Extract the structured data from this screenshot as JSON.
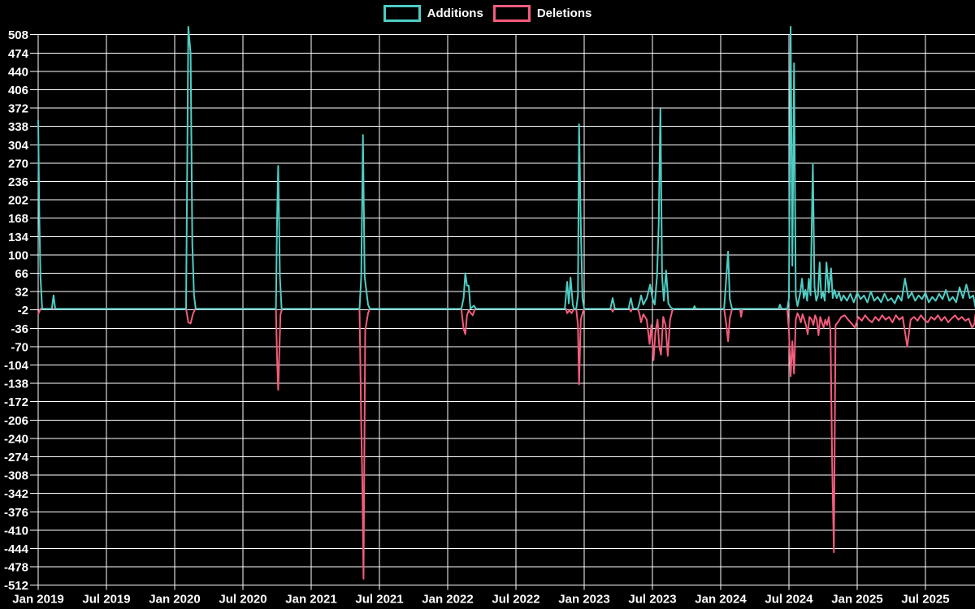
{
  "chart_data": {
    "type": "line",
    "title": "",
    "legend_position": "top-center",
    "grid": true,
    "colors": {
      "background": "#000000",
      "grid": "#FFFFFF",
      "text": "#FFFFFF",
      "additions": "#4ECDC4",
      "deletions": "#F45C7C"
    },
    "legend": [
      {
        "label": "Additions",
        "color": "#4ECDC4"
      },
      {
        "label": "Deletions",
        "color": "#F45C7C"
      }
    ],
    "y_axis": {
      "min": -512,
      "max": 508,
      "step": 34,
      "ticks": [
        508,
        474,
        440,
        406,
        372,
        338,
        304,
        270,
        236,
        202,
        168,
        134,
        100,
        66,
        32,
        -2,
        -36,
        -70,
        -104,
        -138,
        -172,
        -206,
        -240,
        -274,
        -308,
        -342,
        -376,
        -410,
        -444,
        -478,
        -512
      ]
    },
    "x_axis": {
      "tick_labels": [
        "Jan 2019",
        "Jul 2019",
        "Jan 2020",
        "Jul 2020",
        "Jan 2021",
        "Jul 2021",
        "Jan 2022",
        "Jul 2022",
        "Jan 2023",
        "Jul 2023",
        "Jan 2024",
        "Jul 2024",
        "Jan 2025",
        "Jul 2025"
      ],
      "tick_interval_months": 6,
      "end_month_offset": 82.4
    },
    "series": [
      {
        "name": "Additions",
        "color": "#4ECDC4",
        "points": [
          [
            0,
            350
          ],
          [
            0.1,
            170
          ],
          [
            0.2,
            60
          ],
          [
            0.35,
            0
          ],
          [
            1.2,
            0
          ],
          [
            1.35,
            25
          ],
          [
            1.5,
            0
          ],
          [
            13.0,
            0
          ],
          [
            13.2,
            530
          ],
          [
            13.4,
            473
          ],
          [
            13.55,
            120
          ],
          [
            13.7,
            25
          ],
          [
            13.85,
            0
          ],
          [
            20.9,
            0
          ],
          [
            21.0,
            163
          ],
          [
            21.1,
            265
          ],
          [
            21.25,
            60
          ],
          [
            21.4,
            0
          ],
          [
            28.25,
            0
          ],
          [
            28.4,
            60
          ],
          [
            28.55,
            322
          ],
          [
            28.7,
            60
          ],
          [
            28.8,
            42
          ],
          [
            29.0,
            8
          ],
          [
            29.15,
            0
          ],
          [
            37.2,
            0
          ],
          [
            37.4,
            20
          ],
          [
            37.55,
            66
          ],
          [
            37.7,
            43
          ],
          [
            37.85,
            43
          ],
          [
            38.0,
            0
          ],
          [
            38.3,
            6
          ],
          [
            38.5,
            0
          ],
          [
            46.3,
            0
          ],
          [
            46.5,
            50
          ],
          [
            46.65,
            10
          ],
          [
            46.8,
            58
          ],
          [
            47.0,
            8
          ],
          [
            47.1,
            0
          ],
          [
            47.3,
            0
          ],
          [
            47.45,
            25
          ],
          [
            47.55,
            342
          ],
          [
            47.7,
            155
          ],
          [
            47.85,
            20
          ],
          [
            48.0,
            0
          ],
          [
            50.3,
            0
          ],
          [
            50.5,
            20
          ],
          [
            50.7,
            0
          ],
          [
            51.9,
            0
          ],
          [
            52.1,
            20
          ],
          [
            52.3,
            0
          ],
          [
            52.7,
            0
          ],
          [
            52.85,
            10
          ],
          [
            53.0,
            25
          ],
          [
            53.2,
            8
          ],
          [
            53.5,
            20
          ],
          [
            53.8,
            45
          ],
          [
            54.0,
            20
          ],
          [
            54.2,
            8
          ],
          [
            54.4,
            60
          ],
          [
            54.55,
            155
          ],
          [
            54.7,
            370
          ],
          [
            54.85,
            60
          ],
          [
            55.0,
            15
          ],
          [
            55.2,
            71
          ],
          [
            55.4,
            10
          ],
          [
            55.6,
            3
          ],
          [
            55.8,
            0
          ],
          [
            57.6,
            0
          ],
          [
            57.7,
            5
          ],
          [
            57.8,
            0
          ],
          [
            60.3,
            0
          ],
          [
            60.5,
            60
          ],
          [
            60.65,
            106
          ],
          [
            60.8,
            18
          ],
          [
            61.0,
            0
          ],
          [
            65.1,
            0
          ],
          [
            65.2,
            8
          ],
          [
            65.35,
            0
          ],
          [
            65.85,
            0
          ],
          [
            66.0,
            20
          ],
          [
            66.15,
            540
          ],
          [
            66.3,
            80
          ],
          [
            66.45,
            455
          ],
          [
            66.6,
            25
          ],
          [
            66.75,
            5
          ],
          [
            66.85,
            15
          ],
          [
            67.0,
            30
          ],
          [
            67.15,
            56
          ],
          [
            67.3,
            20
          ],
          [
            67.45,
            35
          ],
          [
            67.6,
            15
          ],
          [
            67.75,
            56
          ],
          [
            67.9,
            25
          ],
          [
            68.1,
            269
          ],
          [
            68.25,
            40
          ],
          [
            68.4,
            15
          ],
          [
            68.55,
            25
          ],
          [
            68.7,
            86
          ],
          [
            68.85,
            20
          ],
          [
            69.0,
            30
          ],
          [
            69.15,
            15
          ],
          [
            69.3,
            86
          ],
          [
            69.5,
            30
          ],
          [
            69.7,
            75
          ],
          [
            69.85,
            20
          ],
          [
            70.0,
            35
          ],
          [
            70.2,
            20
          ],
          [
            70.4,
            30
          ],
          [
            70.6,
            15
          ],
          [
            70.8,
            25
          ],
          [
            71.1,
            15
          ],
          [
            71.4,
            28
          ],
          [
            71.7,
            12
          ],
          [
            72.0,
            30
          ],
          [
            72.3,
            18
          ],
          [
            72.6,
            25
          ],
          [
            72.9,
            12
          ],
          [
            73.2,
            32
          ],
          [
            73.5,
            15
          ],
          [
            73.8,
            22
          ],
          [
            74.1,
            12
          ],
          [
            74.4,
            28
          ],
          [
            74.7,
            15
          ],
          [
            75.0,
            20
          ],
          [
            75.3,
            10
          ],
          [
            75.6,
            25
          ],
          [
            75.9,
            15
          ],
          [
            76.2,
            56
          ],
          [
            76.5,
            20
          ],
          [
            76.8,
            30
          ],
          [
            77.1,
            15
          ],
          [
            77.4,
            25
          ],
          [
            77.7,
            18
          ],
          [
            78.0,
            30
          ],
          [
            78.3,
            12
          ],
          [
            78.6,
            22
          ],
          [
            78.9,
            15
          ],
          [
            79.2,
            28
          ],
          [
            79.5,
            18
          ],
          [
            79.8,
            35
          ],
          [
            80.1,
            15
          ],
          [
            80.4,
            22
          ],
          [
            80.7,
            12
          ],
          [
            81.0,
            40
          ],
          [
            81.3,
            20
          ],
          [
            81.6,
            45
          ],
          [
            81.9,
            20
          ],
          [
            82.2,
            25
          ],
          [
            82.4,
            3
          ]
        ]
      },
      {
        "name": "Deletions",
        "color": "#F45C7C",
        "points": [
          [
            0,
            -10
          ],
          [
            0.2,
            0
          ],
          [
            13.0,
            0
          ],
          [
            13.2,
            -25
          ],
          [
            13.4,
            -27
          ],
          [
            13.6,
            -10
          ],
          [
            13.8,
            0
          ],
          [
            20.9,
            0
          ],
          [
            21.0,
            -90
          ],
          [
            21.1,
            -150
          ],
          [
            21.3,
            -10
          ],
          [
            21.45,
            0
          ],
          [
            28.25,
            0
          ],
          [
            28.4,
            -215
          ],
          [
            28.5,
            -325
          ],
          [
            28.6,
            -500
          ],
          [
            28.75,
            -40
          ],
          [
            29.0,
            -8
          ],
          [
            29.15,
            0
          ],
          [
            37.2,
            0
          ],
          [
            37.4,
            -37
          ],
          [
            37.55,
            -47
          ],
          [
            37.7,
            -12
          ],
          [
            37.85,
            -3
          ],
          [
            38.2,
            -12
          ],
          [
            38.4,
            0
          ],
          [
            46.4,
            0
          ],
          [
            46.5,
            -8
          ],
          [
            46.7,
            -3
          ],
          [
            46.9,
            -8
          ],
          [
            47.1,
            0
          ],
          [
            47.3,
            0
          ],
          [
            47.45,
            -30
          ],
          [
            47.55,
            -140
          ],
          [
            47.7,
            -20
          ],
          [
            47.9,
            -5
          ],
          [
            48.05,
            0
          ],
          [
            50.4,
            0
          ],
          [
            50.5,
            -5
          ],
          [
            50.6,
            0
          ],
          [
            52.0,
            0
          ],
          [
            52.1,
            -5
          ],
          [
            52.2,
            0
          ],
          [
            52.7,
            0
          ],
          [
            52.85,
            -8
          ],
          [
            53.0,
            -25
          ],
          [
            53.2,
            -10
          ],
          [
            53.5,
            -20
          ],
          [
            53.75,
            -65
          ],
          [
            53.9,
            -30
          ],
          [
            54.1,
            -95
          ],
          [
            54.25,
            -45
          ],
          [
            54.45,
            -20
          ],
          [
            54.6,
            -70
          ],
          [
            54.75,
            -85
          ],
          [
            54.95,
            -15
          ],
          [
            55.15,
            -30
          ],
          [
            55.35,
            -87
          ],
          [
            55.55,
            -20
          ],
          [
            55.75,
            -3
          ],
          [
            55.9,
            0
          ],
          [
            60.3,
            0
          ],
          [
            60.5,
            -30
          ],
          [
            60.65,
            -60
          ],
          [
            60.8,
            -18
          ],
          [
            61.0,
            0
          ],
          [
            61.7,
            0
          ],
          [
            61.8,
            -15
          ],
          [
            61.9,
            0
          ],
          [
            65.85,
            0
          ],
          [
            66.0,
            -40
          ],
          [
            66.15,
            -125
          ],
          [
            66.3,
            -60
          ],
          [
            66.45,
            -120
          ],
          [
            66.6,
            -20
          ],
          [
            66.75,
            -8
          ],
          [
            66.9,
            -15
          ],
          [
            67.05,
            -25
          ],
          [
            67.2,
            -10
          ],
          [
            67.35,
            -20
          ],
          [
            67.5,
            -30
          ],
          [
            67.65,
            -47
          ],
          [
            67.8,
            -15
          ],
          [
            68.0,
            -20
          ],
          [
            68.15,
            -30
          ],
          [
            68.3,
            -12
          ],
          [
            68.45,
            -20
          ],
          [
            68.6,
            -49
          ],
          [
            68.75,
            -15
          ],
          [
            68.9,
            -25
          ],
          [
            69.05,
            -35
          ],
          [
            69.2,
            -20
          ],
          [
            69.35,
            -30
          ],
          [
            69.5,
            -15
          ],
          [
            69.65,
            -40
          ],
          [
            69.8,
            -288
          ],
          [
            69.95,
            -451
          ],
          [
            70.1,
            -30
          ],
          [
            70.3,
            -25
          ],
          [
            70.6,
            -15
          ],
          [
            70.9,
            -12
          ],
          [
            71.2,
            -20
          ],
          [
            71.5,
            -27
          ],
          [
            71.8,
            -35
          ],
          [
            72.1,
            -15
          ],
          [
            72.4,
            -22
          ],
          [
            72.7,
            -12
          ],
          [
            73.0,
            -20
          ],
          [
            73.3,
            -25
          ],
          [
            73.6,
            -15
          ],
          [
            73.9,
            -22
          ],
          [
            74.2,
            -12
          ],
          [
            74.5,
            -20
          ],
          [
            74.8,
            -15
          ],
          [
            75.1,
            -25
          ],
          [
            75.4,
            -12
          ],
          [
            75.7,
            -20
          ],
          [
            76.0,
            -15
          ],
          [
            76.4,
            -70
          ],
          [
            76.7,
            -20
          ],
          [
            77.0,
            -15
          ],
          [
            77.3,
            -22
          ],
          [
            77.6,
            -12
          ],
          [
            77.9,
            -20
          ],
          [
            78.2,
            -25
          ],
          [
            78.5,
            -15
          ],
          [
            78.8,
            -20
          ],
          [
            79.1,
            -12
          ],
          [
            79.4,
            -22
          ],
          [
            79.7,
            -15
          ],
          [
            80.0,
            -25
          ],
          [
            80.3,
            -18
          ],
          [
            80.6,
            -12
          ],
          [
            80.9,
            -20
          ],
          [
            81.2,
            -15
          ],
          [
            81.5,
            -22
          ],
          [
            81.8,
            -18
          ],
          [
            82.1,
            -35
          ],
          [
            82.3,
            -28
          ],
          [
            82.4,
            -10
          ]
        ]
      }
    ]
  }
}
